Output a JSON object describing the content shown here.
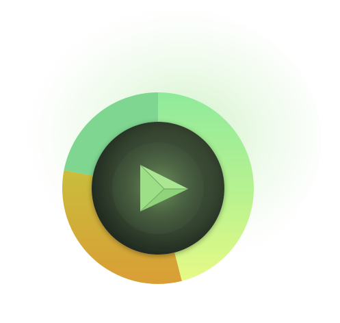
{
  "player": {
    "control": "play",
    "icon": "play-icon",
    "ring_segments": [
      {
        "name": "",
        "fraction": 0.46,
        "color_start": "#8fea9c",
        "color_end": "#e0f989"
      },
      {
        "name": "",
        "fraction": 0.32,
        "color_start": "#d9a03a",
        "color_end": "#cdbe3a"
      },
      {
        "name": "",
        "fraction": 0.22,
        "color_start": "#7fd690",
        "color_end": "#7fd690"
      }
    ],
    "colors": {
      "disc_dark": "#1c2520",
      "disc_mid": "#45573f",
      "icon_fill": "#9ddf86",
      "glow": "#c8efbf"
    }
  }
}
